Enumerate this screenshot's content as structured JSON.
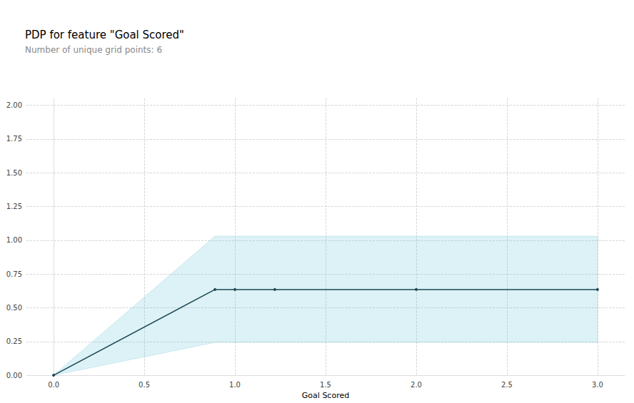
{
  "chart_data": {
    "type": "line",
    "title": "PDP for feature \"Goal Scored\"",
    "subtitle": "Number of unique grid points: 6",
    "x_label": "Goal Scored",
    "x": [
      0,
      0.89,
      1.0,
      1.22,
      2.0,
      3.0
    ],
    "values": [
      0,
      0.635,
      0.635,
      0.635,
      0.635,
      0.635
    ],
    "upper": [
      0,
      1.03,
      1.03,
      1.03,
      1.03,
      1.03
    ],
    "lower": [
      0,
      0.243,
      0.243,
      0.243,
      0.243,
      0.243
    ],
    "color": "#1a4756",
    "marker": "circle",
    "grid": true,
    "xlim": [
      -0.15,
      3.15
    ],
    "xticks": [
      {
        "value": 0,
        "label": "0.0"
      },
      {
        "value": 0.5,
        "label": "0.5"
      },
      {
        "value": 1,
        "label": "1.0"
      },
      {
        "value": 1.5,
        "label": "1.5"
      },
      {
        "value": 2,
        "label": "2.0"
      },
      {
        "value": 2.5,
        "label": "2.5"
      },
      {
        "value": 3,
        "label": "3.0"
      }
    ],
    "ylim": [
      0,
      2.05
    ],
    "yticks": [
      {
        "value": 0,
        "label": "0.00"
      },
      {
        "value": 0.25,
        "label": "0.25"
      },
      {
        "value": 0.5,
        "label": "0.50"
      },
      {
        "value": 0.75,
        "label": "0.75"
      },
      {
        "value": 1,
        "label": "1.00"
      },
      {
        "value": 1.25,
        "label": "1.25"
      },
      {
        "value": 1.5,
        "label": "1.50"
      },
      {
        "value": 1.75,
        "label": "1.75"
      },
      {
        "value": 2,
        "label": "2.00"
      }
    ]
  }
}
